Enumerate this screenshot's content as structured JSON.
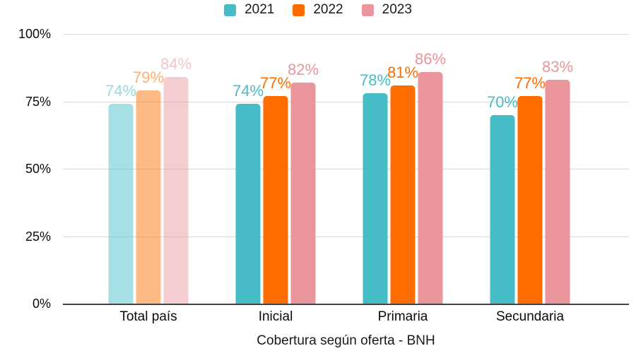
{
  "chart_data": {
    "type": "bar",
    "title": "Cobertura según oferta - BNH",
    "categories": [
      "Total país",
      "Inicial",
      "Primaria",
      "Secundaria"
    ],
    "series": [
      {
        "name": "2021",
        "color": "#46BDC6",
        "values": [
          74,
          74,
          78,
          70
        ]
      },
      {
        "name": "2022",
        "color": "#FF6D01",
        "values": [
          79,
          77,
          81,
          77
        ]
      },
      {
        "name": "2023",
        "color": "#EA959B",
        "values": [
          84,
          82,
          86,
          83
        ]
      }
    ],
    "muted_categories": [
      "Total país"
    ],
    "value_suffix": "%",
    "y_ticks": [
      "0%",
      "25%",
      "50%",
      "75%",
      "100%"
    ],
    "ylim": [
      0,
      100
    ],
    "grid": true,
    "legend_position": "top",
    "legend_labels": [
      "2021",
      "2022",
      "2023"
    ]
  }
}
